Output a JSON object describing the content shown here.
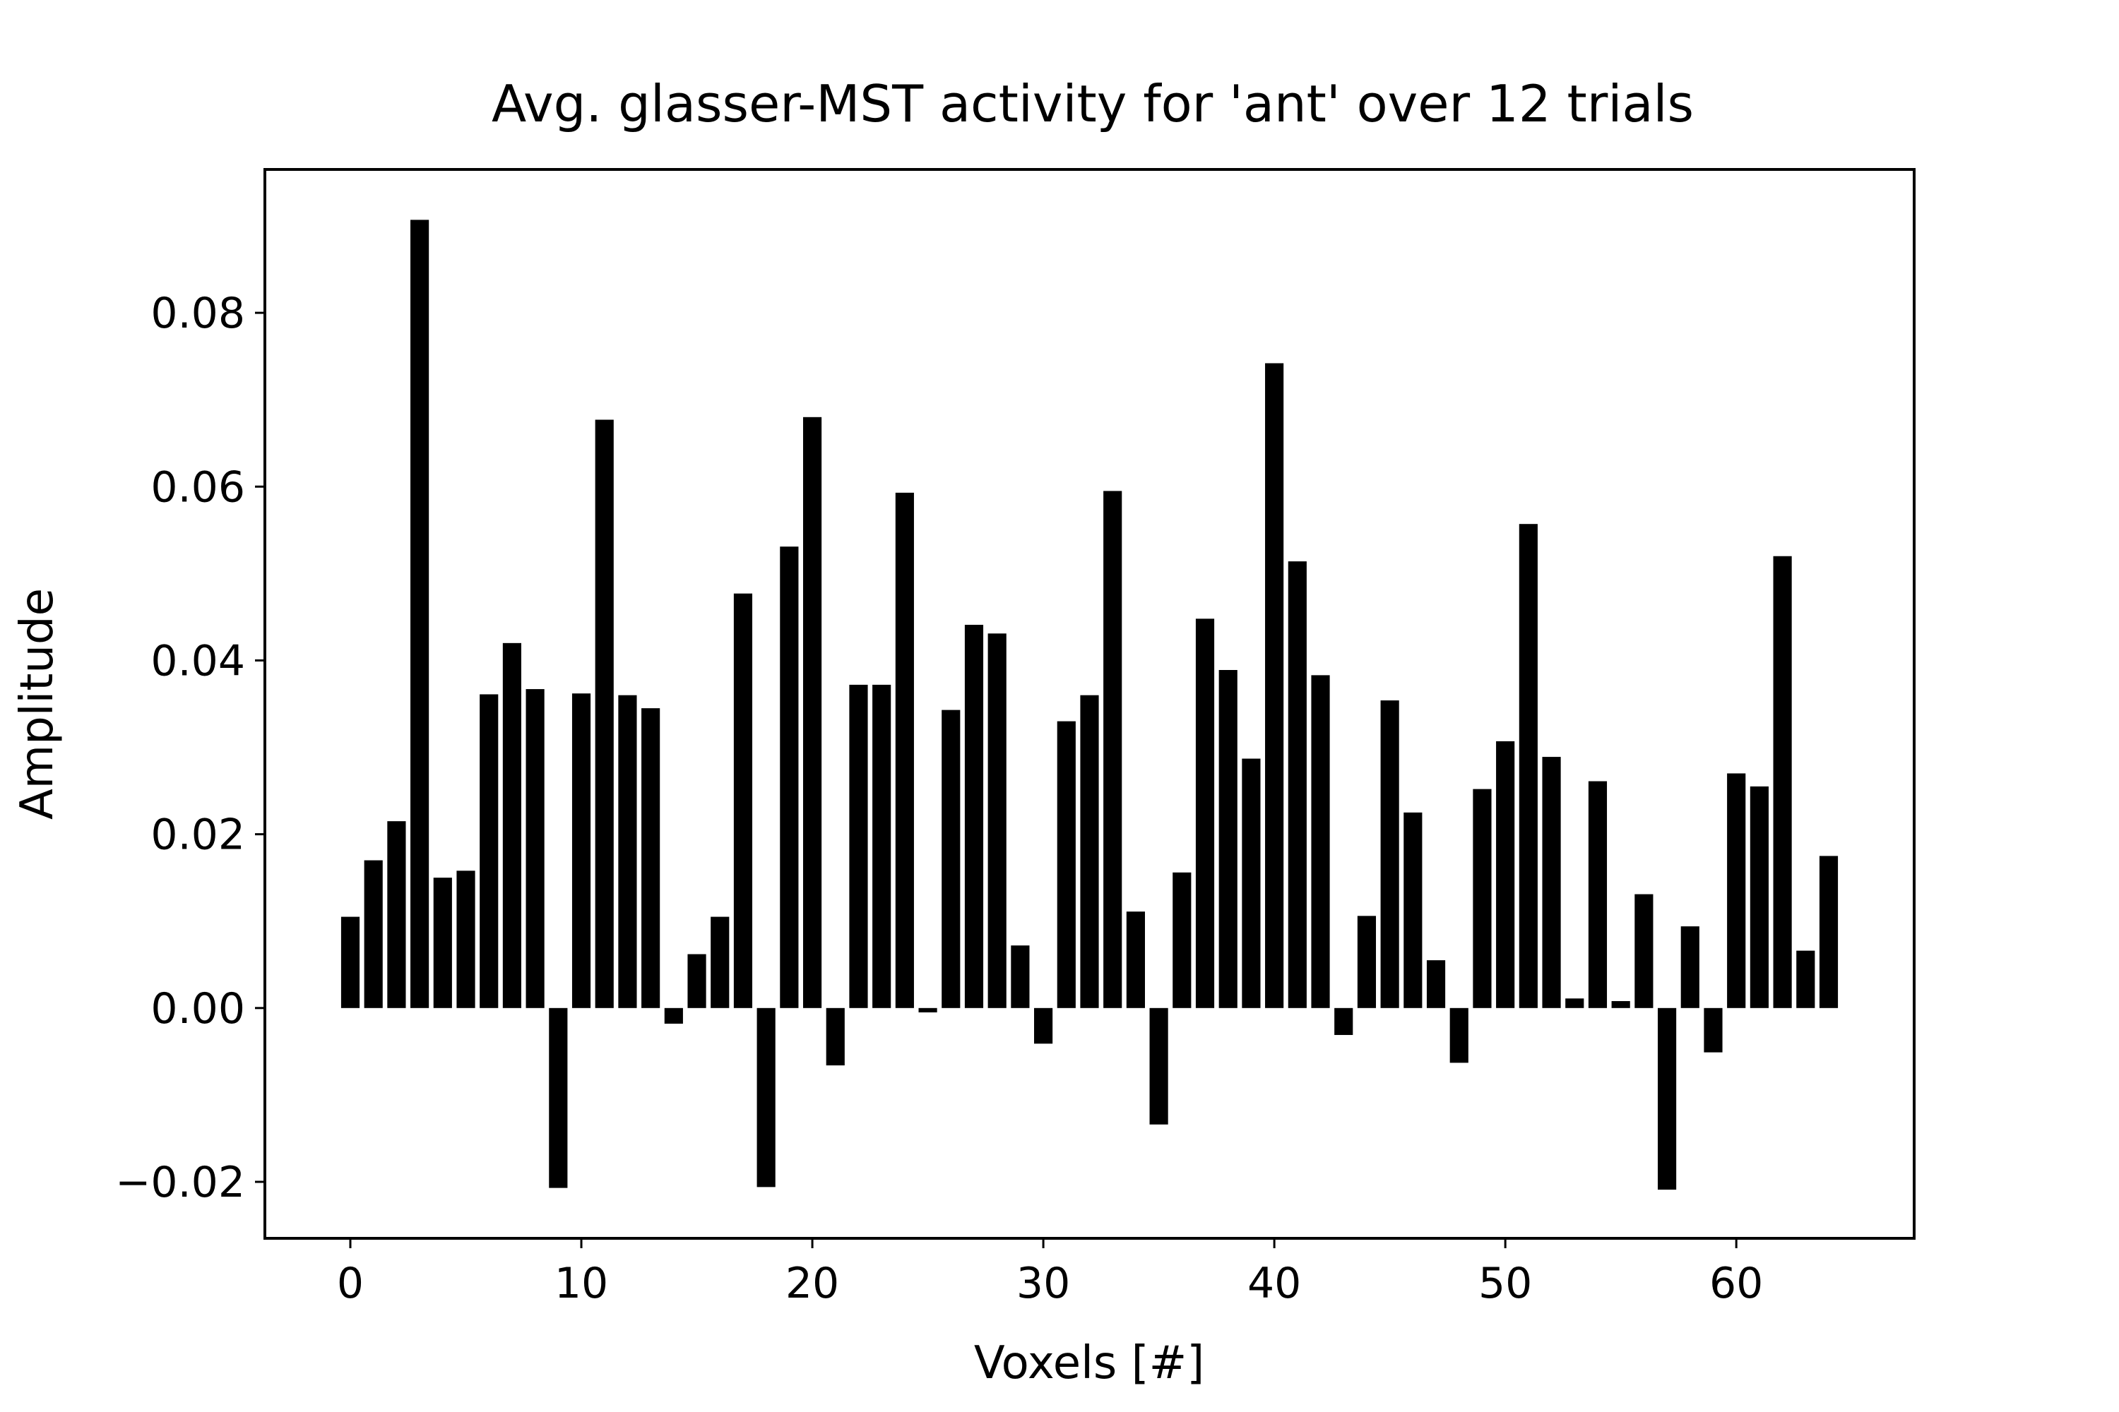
{
  "chart_data": {
    "type": "bar",
    "title": "Avg. glasser-MST activity for 'ant' over 12 trials",
    "xlabel": "Voxels [#]",
    "ylabel": "Amplitude",
    "xlim": [
      -3.7,
      67.7
    ],
    "ylim": [
      -0.0265,
      0.0965
    ],
    "x_ticks": [
      0,
      10,
      20,
      30,
      40,
      50,
      60
    ],
    "x_tick_labels": [
      "0",
      "10",
      "20",
      "30",
      "40",
      "50",
      "60"
    ],
    "y_ticks": [
      -0.02,
      0.0,
      0.02,
      0.04,
      0.06,
      0.08
    ],
    "y_tick_labels": [
      "−0.02",
      "0.00",
      "0.02",
      "0.04",
      "0.06",
      "0.08"
    ],
    "grid": false,
    "bar_color": "#000000",
    "x": [
      0,
      1,
      2,
      3,
      4,
      5,
      6,
      7,
      8,
      9,
      10,
      11,
      12,
      13,
      14,
      15,
      16,
      17,
      18,
      19,
      20,
      21,
      22,
      23,
      24,
      25,
      26,
      27,
      28,
      29,
      30,
      31,
      32,
      33,
      34,
      35,
      36,
      37,
      38,
      39,
      40,
      41,
      42,
      43,
      44,
      45,
      46,
      47,
      48,
      49,
      50,
      51,
      52,
      53,
      54,
      55,
      56,
      57,
      58,
      59,
      60,
      61,
      62,
      63,
      64
    ],
    "values": [
      0.0105,
      0.017,
      0.0215,
      0.0907,
      0.015,
      0.0158,
      0.0361,
      0.042,
      0.0367,
      -0.0207,
      0.0362,
      0.0677,
      0.036,
      0.0345,
      -0.0018,
      0.0062,
      0.0105,
      0.0477,
      -0.0206,
      0.0531,
      0.068,
      -0.0066,
      0.0372,
      0.0372,
      0.0593,
      -0.0005,
      0.0343,
      0.0441,
      0.0431,
      0.0072,
      -0.0041,
      0.033,
      0.036,
      0.0595,
      0.0111,
      -0.0134,
      0.0156,
      0.0448,
      0.0389,
      0.0287,
      0.0742,
      0.0514,
      0.0383,
      -0.0031,
      0.0106,
      0.0354,
      0.0225,
      0.0055,
      -0.0063,
      0.0252,
      0.0307,
      0.0557,
      0.0289,
      0.0011,
      0.0261,
      0.0008,
      0.0131,
      -0.0209,
      0.0094,
      -0.0051,
      0.027,
      0.0255,
      0.052,
      0.0066,
      0.0175
    ]
  }
}
